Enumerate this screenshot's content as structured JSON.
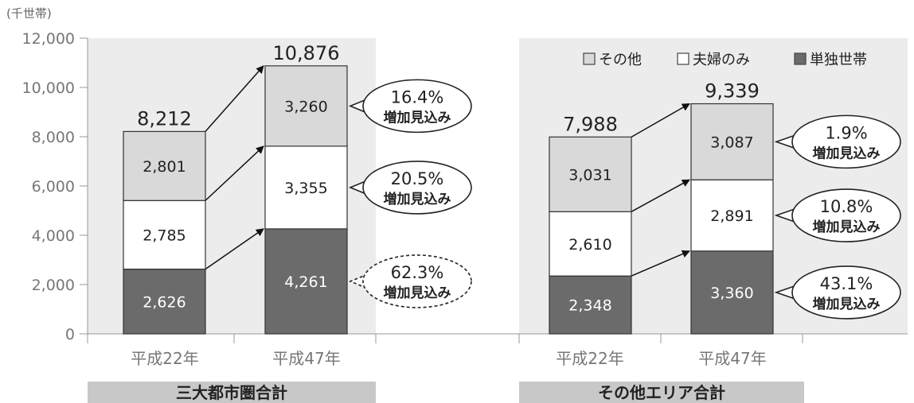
{
  "chart_data": {
    "type": "bar",
    "stacked": true,
    "unit_label": "(千世帯)",
    "ylim": [
      0,
      12000
    ],
    "yticks": [
      "0",
      "2,000",
      "4,000",
      "6,000",
      "8,000",
      "10,000",
      "12,000"
    ],
    "grid": false,
    "legend_position": "top-right",
    "legend": [
      {
        "name": "その他",
        "marker": "□"
      },
      {
        "name": "夫婦のみ",
        "marker": "□"
      },
      {
        "name": "単独世帯",
        "marker": "■"
      }
    ],
    "colors": {
      "その他": "#d9d9d9",
      "夫婦のみ": "#ffffff",
      "単独世帯": "#6b6b6b",
      "plot_bg": "#ececec",
      "group_label_bg": "#c8c8c8"
    },
    "groups": [
      {
        "name": "三大都市圏合計",
        "categories": [
          "平成22年",
          "平成47年"
        ],
        "series": [
          {
            "name": "単独世帯",
            "values": [
              2626,
              4261
            ],
            "labels": [
              "2,626",
              "4,261"
            ]
          },
          {
            "name": "夫婦のみ",
            "values": [
              2785,
              3355
            ],
            "labels": [
              "2,785",
              "3,355"
            ]
          },
          {
            "name": "その他",
            "values": [
              2801,
              3260
            ],
            "labels": [
              "2,801",
              "3,260"
            ]
          }
        ],
        "totals": [
          "8,212",
          "10,876"
        ],
        "callouts": [
          {
            "series": "その他",
            "pct": "16.4%",
            "note": "増加見込み",
            "dashed": false
          },
          {
            "series": "夫婦のみ",
            "pct": "20.5%",
            "note": "増加見込み",
            "dashed": false
          },
          {
            "series": "単独世帯",
            "pct": "62.3%",
            "note": "増加見込み",
            "dashed": true
          }
        ]
      },
      {
        "name": "その他エリア合計",
        "categories": [
          "平成22年",
          "平成47年"
        ],
        "series": [
          {
            "name": "単独世帯",
            "values": [
              2348,
              3360
            ],
            "labels": [
              "2,348",
              "3,360"
            ]
          },
          {
            "name": "夫婦のみ",
            "values": [
              2610,
              2891
            ],
            "labels": [
              "2,610",
              "2,891"
            ]
          },
          {
            "name": "その他",
            "values": [
              3031,
              3087
            ],
            "labels": [
              "3,031",
              "3,087"
            ]
          }
        ],
        "totals": [
          "7,988",
          "9,339"
        ],
        "callouts": [
          {
            "series": "その他",
            "pct": "1.9%",
            "note": "増加見込み",
            "dashed": false
          },
          {
            "series": "夫婦のみ",
            "pct": "10.8%",
            "note": "増加見込み",
            "dashed": false
          },
          {
            "series": "単独世帯",
            "pct": "43.1%",
            "note": "増加見込み",
            "dashed": false
          }
        ]
      }
    ]
  }
}
